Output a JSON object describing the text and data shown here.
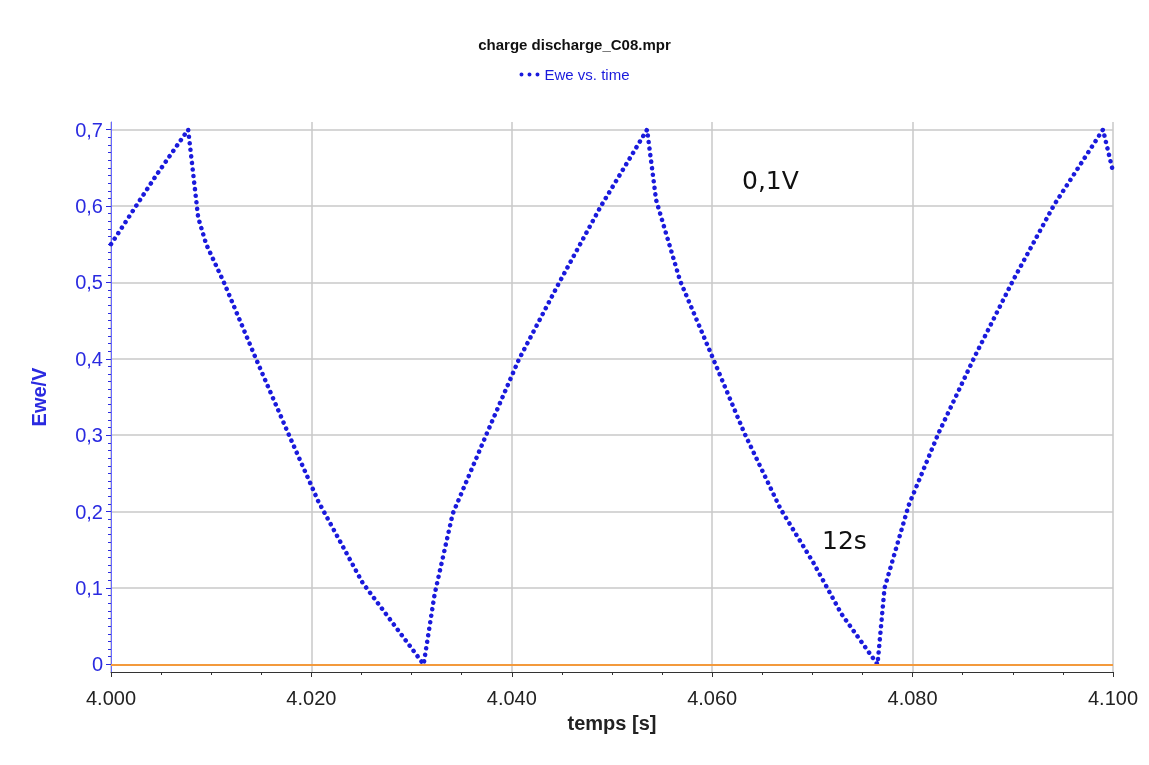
{
  "chart_data": {
    "type": "line",
    "title": "charge discharge_C08.mpr",
    "xlabel": "temps [s]",
    "ylabel": "Ewe/V",
    "x": [
      4000,
      4002,
      4004.5,
      4007.7,
      4008.7,
      4009.5,
      4011.3,
      4014.5,
      4017.8,
      4020.7,
      4025.1,
      4031.2,
      4032.3,
      4034.1,
      4037.4,
      4040.7,
      4044.7,
      4048.9,
      4053.5,
      4054.4,
      4056.8,
      4060,
      4063.2,
      4066.8,
      4070.1,
      4072.9,
      4076.5,
      4077.2,
      4079.6,
      4082.6,
      4086.2,
      4090,
      4094.1,
      4099,
      4100
    ],
    "series": [
      {
        "name": "Ewe vs. time",
        "color": "#1a1adc",
        "values": [
          0.55,
          0.59,
          0.64,
          0.7,
          0.585,
          0.55,
          0.499,
          0.399,
          0.299,
          0.213,
          0.107,
          0,
          0.092,
          0.197,
          0.299,
          0.399,
          0.499,
          0.6,
          0.7,
          0.608,
          0.502,
          0.403,
          0.303,
          0.204,
          0.133,
          0.066,
          0,
          0.1,
          0.208,
          0.303,
          0.403,
          0.502,
          0.601,
          0.7,
          0.645
        ]
      }
    ],
    "xlim": [
      4000,
      4100
    ],
    "ylim": [
      -0.01,
      0.71
    ],
    "xticks": [
      {
        "value": 4000,
        "label": "4.000"
      },
      {
        "value": 4020,
        "label": "4.020"
      },
      {
        "value": 4040,
        "label": "4.040"
      },
      {
        "value": 4060,
        "label": "4.060"
      },
      {
        "value": 4080,
        "label": "4.080"
      },
      {
        "value": 4100,
        "label": "4.100"
      }
    ],
    "yticks": [
      0,
      {
        "value": 0.1,
        "label": "0,1"
      },
      {
        "value": 0.2,
        "label": "0,2"
      },
      {
        "value": 0.3,
        "label": "0,3"
      },
      {
        "value": 0.4,
        "label": "0,4"
      },
      {
        "value": 0.5,
        "label": "0,5"
      },
      {
        "value": 0.6,
        "label": "0,6"
      },
      {
        "value": 0.7,
        "label": "0,7"
      }
    ],
    "ref_lines": [
      {
        "axis": "y",
        "value": 0,
        "label": null,
        "color": "#f39a3c"
      }
    ],
    "annotations": [
      "0,1V",
      "12s"
    ],
    "grid": true,
    "legend": "top",
    "marker": "none",
    "line_style": "dotted"
  }
}
